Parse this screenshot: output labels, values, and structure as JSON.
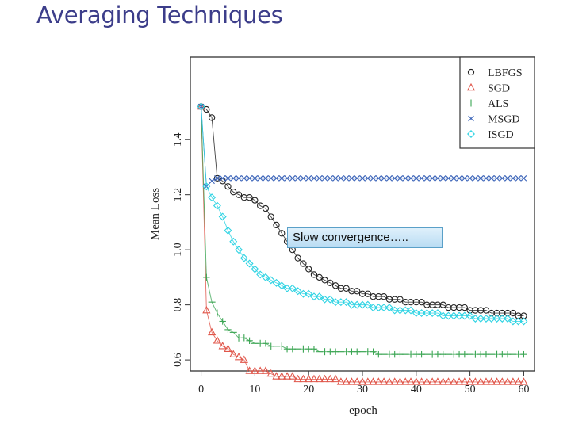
{
  "slide": {
    "title": "Averaging Techniques",
    "callout": "Slow convergence….."
  },
  "colors": {
    "LBFGS": "#222222",
    "SGD": "#e0564a",
    "ALS": "#3aa552",
    "MSGD": "#3a63b8",
    "ISGD": "#2ed3e3"
  },
  "chart_data": {
    "type": "scatter",
    "xlabel": "epoch",
    "ylabel": "Mean Loss",
    "xlim": [
      -2,
      62
    ],
    "ylim": [
      0.56,
      1.7
    ],
    "xticks": [
      0,
      10,
      20,
      30,
      40,
      50,
      60
    ],
    "yticks": [
      0.6,
      0.8,
      1.0,
      1.2,
      1.4
    ],
    "legend_position": "top-right",
    "series": [
      {
        "name": "LBFGS",
        "marker": "circle",
        "x": [
          0,
          1,
          2,
          3,
          4,
          5,
          6,
          7,
          8,
          9,
          10,
          11,
          12,
          13,
          14,
          15,
          16,
          17,
          18,
          19,
          20,
          21,
          22,
          23,
          24,
          25,
          26,
          27,
          28,
          29,
          30,
          31,
          32,
          33,
          34,
          35,
          36,
          37,
          38,
          39,
          40,
          41,
          42,
          43,
          44,
          45,
          46,
          47,
          48,
          49,
          50,
          51,
          52,
          53,
          54,
          55,
          56,
          57,
          58,
          59,
          60
        ],
        "y": [
          1.52,
          1.51,
          1.48,
          1.26,
          1.25,
          1.23,
          1.21,
          1.2,
          1.19,
          1.19,
          1.18,
          1.16,
          1.15,
          1.12,
          1.09,
          1.06,
          1.03,
          1.0,
          0.97,
          0.95,
          0.93,
          0.91,
          0.9,
          0.89,
          0.88,
          0.87,
          0.86,
          0.86,
          0.85,
          0.85,
          0.84,
          0.84,
          0.83,
          0.83,
          0.83,
          0.82,
          0.82,
          0.82,
          0.81,
          0.81,
          0.81,
          0.81,
          0.8,
          0.8,
          0.8,
          0.8,
          0.79,
          0.79,
          0.79,
          0.79,
          0.78,
          0.78,
          0.78,
          0.78,
          0.77,
          0.77,
          0.77,
          0.77,
          0.77,
          0.76,
          0.76
        ]
      },
      {
        "name": "SGD",
        "marker": "triangle",
        "x": [
          0,
          1,
          2,
          3,
          4,
          5,
          6,
          7,
          8,
          9,
          10,
          11,
          12,
          13,
          14,
          15,
          16,
          17,
          18,
          19,
          20,
          21,
          22,
          23,
          24,
          25,
          26,
          27,
          28,
          29,
          30,
          31,
          32,
          33,
          34,
          35,
          36,
          37,
          38,
          39,
          40,
          41,
          42,
          43,
          44,
          45,
          46,
          47,
          48,
          49,
          50,
          51,
          52,
          53,
          54,
          55,
          56,
          57,
          58,
          59,
          60
        ],
        "y": [
          1.52,
          0.78,
          0.7,
          0.67,
          0.65,
          0.64,
          0.62,
          0.61,
          0.6,
          0.56,
          0.56,
          0.56,
          0.56,
          0.55,
          0.54,
          0.54,
          0.54,
          0.54,
          0.53,
          0.53,
          0.53,
          0.53,
          0.53,
          0.53,
          0.53,
          0.53,
          0.52,
          0.52,
          0.52,
          0.52,
          0.52,
          0.52,
          0.52,
          0.52,
          0.52,
          0.52,
          0.52,
          0.52,
          0.52,
          0.52,
          0.52,
          0.52,
          0.52,
          0.52,
          0.52,
          0.52,
          0.52,
          0.52,
          0.52,
          0.52,
          0.52,
          0.52,
          0.52,
          0.52,
          0.52,
          0.52,
          0.52,
          0.52,
          0.52,
          0.52,
          0.52
        ]
      },
      {
        "name": "ALS",
        "marker": "bar",
        "x": [
          0,
          1,
          2,
          3,
          4,
          5,
          6,
          7,
          8,
          9,
          10,
          11,
          12,
          13,
          14,
          15,
          16,
          17,
          18,
          19,
          20,
          21,
          22,
          23,
          24,
          25,
          26,
          27,
          28,
          29,
          30,
          31,
          32,
          33,
          34,
          35,
          36,
          37,
          38,
          39,
          40,
          41,
          42,
          43,
          44,
          45,
          46,
          47,
          48,
          49,
          50,
          51,
          52,
          53,
          54,
          55,
          56,
          57,
          58,
          59,
          60
        ],
        "y": [
          1.52,
          0.9,
          0.81,
          0.77,
          0.74,
          0.71,
          0.7,
          0.68,
          0.68,
          0.67,
          0.66,
          0.66,
          0.66,
          0.65,
          0.65,
          0.65,
          0.64,
          0.64,
          0.64,
          0.64,
          0.64,
          0.64,
          0.63,
          0.63,
          0.63,
          0.63,
          0.63,
          0.63,
          0.63,
          0.63,
          0.63,
          0.63,
          0.63,
          0.62,
          0.62,
          0.62,
          0.62,
          0.62,
          0.62,
          0.62,
          0.62,
          0.62,
          0.62,
          0.62,
          0.62,
          0.62,
          0.62,
          0.62,
          0.62,
          0.62,
          0.62,
          0.62,
          0.62,
          0.62,
          0.62,
          0.62,
          0.62,
          0.62,
          0.62,
          0.62,
          0.62
        ]
      },
      {
        "name": "MSGD",
        "marker": "x",
        "x": [
          0,
          1,
          2,
          3,
          4,
          5,
          6,
          7,
          8,
          9,
          10,
          11,
          12,
          13,
          14,
          15,
          16,
          17,
          18,
          19,
          20,
          21,
          22,
          23,
          24,
          25,
          26,
          27,
          28,
          29,
          30,
          31,
          32,
          33,
          34,
          35,
          36,
          37,
          38,
          39,
          40,
          41,
          42,
          43,
          44,
          45,
          46,
          47,
          48,
          49,
          50,
          51,
          52,
          53,
          54,
          55,
          56,
          57,
          58,
          59,
          60
        ],
        "y": [
          1.52,
          1.23,
          1.25,
          1.26,
          1.26,
          1.26,
          1.26,
          1.26,
          1.26,
          1.26,
          1.26,
          1.26,
          1.26,
          1.26,
          1.26,
          1.26,
          1.26,
          1.26,
          1.26,
          1.26,
          1.26,
          1.26,
          1.26,
          1.26,
          1.26,
          1.26,
          1.26,
          1.26,
          1.26,
          1.26,
          1.26,
          1.26,
          1.26,
          1.26,
          1.26,
          1.26,
          1.26,
          1.26,
          1.26,
          1.26,
          1.26,
          1.26,
          1.26,
          1.26,
          1.26,
          1.26,
          1.26,
          1.26,
          1.26,
          1.26,
          1.26,
          1.26,
          1.26,
          1.26,
          1.26,
          1.26,
          1.26,
          1.26,
          1.26,
          1.26,
          1.26
        ]
      },
      {
        "name": "ISGD",
        "marker": "diamond",
        "x": [
          0,
          1,
          2,
          3,
          4,
          5,
          6,
          7,
          8,
          9,
          10,
          11,
          12,
          13,
          14,
          15,
          16,
          17,
          18,
          19,
          20,
          21,
          22,
          23,
          24,
          25,
          26,
          27,
          28,
          29,
          30,
          31,
          32,
          33,
          34,
          35,
          36,
          37,
          38,
          39,
          40,
          41,
          42,
          43,
          44,
          45,
          46,
          47,
          48,
          49,
          50,
          51,
          52,
          53,
          54,
          55,
          56,
          57,
          58,
          59,
          60
        ],
        "y": [
          1.52,
          1.23,
          1.19,
          1.16,
          1.12,
          1.07,
          1.03,
          1.0,
          0.97,
          0.95,
          0.93,
          0.91,
          0.9,
          0.89,
          0.88,
          0.87,
          0.86,
          0.86,
          0.85,
          0.84,
          0.84,
          0.83,
          0.83,
          0.82,
          0.82,
          0.81,
          0.81,
          0.81,
          0.8,
          0.8,
          0.8,
          0.8,
          0.79,
          0.79,
          0.79,
          0.79,
          0.78,
          0.78,
          0.78,
          0.78,
          0.77,
          0.77,
          0.77,
          0.77,
          0.77,
          0.76,
          0.76,
          0.76,
          0.76,
          0.76,
          0.76,
          0.75,
          0.75,
          0.75,
          0.75,
          0.75,
          0.75,
          0.75,
          0.74,
          0.74,
          0.74
        ]
      }
    ]
  }
}
